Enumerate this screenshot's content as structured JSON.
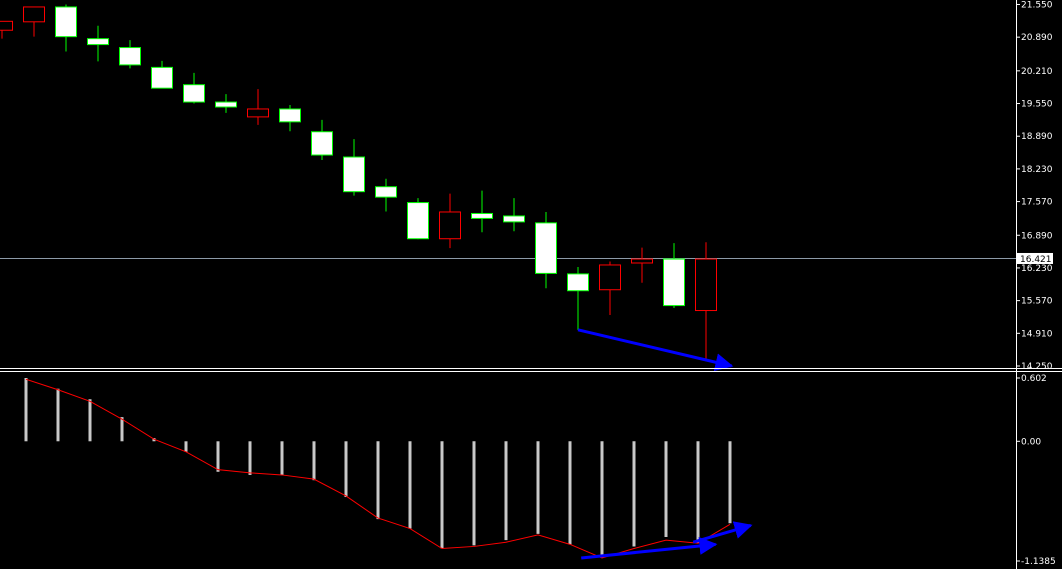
{
  "chart_data": [
    {
      "type": "candlestick",
      "panel": "price",
      "ylim": [
        14.25,
        21.6
      ],
      "y_ticks": [
        "21.550",
        "20.890",
        "20.210",
        "19.550",
        "18.890",
        "18.230",
        "17.570",
        "16.890",
        "16.230",
        "15.570",
        "14.910",
        "14.250"
      ],
      "current_price": "16.421",
      "grid": false,
      "candles": [
        {
          "o": 21.03,
          "h": 21.2,
          "l": 20.86,
          "c": 21.21,
          "dir": "down"
        },
        {
          "o": 21.2,
          "h": 21.48,
          "l": 20.9,
          "c": 21.5,
          "dir": "down"
        },
        {
          "o": 21.5,
          "h": 21.55,
          "l": 20.6,
          "c": 20.9,
          "dir": "up"
        },
        {
          "o": 20.86,
          "h": 21.12,
          "l": 20.4,
          "c": 20.74,
          "dir": "up"
        },
        {
          "o": 20.68,
          "h": 20.83,
          "l": 20.26,
          "c": 20.33,
          "dir": "up"
        },
        {
          "o": 20.28,
          "h": 20.41,
          "l": 19.86,
          "c": 19.86,
          "dir": "up"
        },
        {
          "o": 19.93,
          "h": 20.17,
          "l": 19.55,
          "c": 19.58,
          "dir": "up"
        },
        {
          "o": 19.58,
          "h": 19.74,
          "l": 19.36,
          "c": 19.48,
          "dir": "up"
        },
        {
          "o": 19.28,
          "h": 19.84,
          "l": 19.12,
          "c": 19.44,
          "dir": "down"
        },
        {
          "o": 19.44,
          "h": 19.52,
          "l": 18.99,
          "c": 19.18,
          "dir": "up"
        },
        {
          "o": 18.98,
          "h": 19.22,
          "l": 18.41,
          "c": 18.51,
          "dir": "up"
        },
        {
          "o": 18.47,
          "h": 18.83,
          "l": 17.69,
          "c": 17.77,
          "dir": "up"
        },
        {
          "o": 17.87,
          "h": 18.03,
          "l": 17.37,
          "c": 17.66,
          "dir": "up"
        },
        {
          "o": 17.55,
          "h": 17.64,
          "l": 16.81,
          "c": 16.82,
          "dir": "up"
        },
        {
          "o": 16.82,
          "h": 17.73,
          "l": 16.63,
          "c": 17.36,
          "dir": "down"
        },
        {
          "o": 17.33,
          "h": 17.79,
          "l": 16.95,
          "c": 17.23,
          "dir": "up"
        },
        {
          "o": 17.28,
          "h": 17.64,
          "l": 16.97,
          "c": 17.16,
          "dir": "up"
        },
        {
          "o": 17.14,
          "h": 17.36,
          "l": 15.82,
          "c": 16.12,
          "dir": "up"
        },
        {
          "o": 16.11,
          "h": 16.25,
          "l": 14.98,
          "c": 15.77,
          "dir": "up"
        },
        {
          "o": 15.79,
          "h": 16.36,
          "l": 15.28,
          "c": 16.29,
          "dir": "down"
        },
        {
          "o": 16.33,
          "h": 16.64,
          "l": 15.93,
          "c": 16.41,
          "dir": "down"
        },
        {
          "o": 16.41,
          "h": 16.73,
          "l": 15.42,
          "c": 15.47,
          "dir": "up"
        },
        {
          "o": 15.37,
          "h": 16.75,
          "l": 14.34,
          "c": 16.41,
          "dir": "down"
        }
      ],
      "annotation": {
        "type": "arrow",
        "color": "#0000ff",
        "from": {
          "bar": 18,
          "y": 14.98
        },
        "to": {
          "bar": 22.8,
          "y": 14.25
        }
      }
    },
    {
      "type": "histogram",
      "panel": "oscillator",
      "ylim": [
        -1.1385,
        0.602
      ],
      "y_ticks": [
        "0.602",
        "0.00",
        "-1.1385"
      ],
      "values": [
        0.602,
        0.5,
        0.4,
        0.23,
        0.03,
        -0.1,
        -0.29,
        -0.32,
        -0.32,
        -0.37,
        -0.53,
        -0.74,
        -0.83,
        -1.02,
        -0.99,
        -0.94,
        -0.88,
        -0.98,
        -1.11,
        -1.0,
        -0.91,
        -0.97,
        -0.78
      ],
      "signal_line": [
        0.59,
        0.49,
        0.38,
        0.21,
        0.02,
        -0.1,
        -0.27,
        -0.3,
        -0.32,
        -0.36,
        -0.52,
        -0.73,
        -0.83,
        -1.02,
        -1.0,
        -0.96,
        -0.89,
        -0.98,
        -1.11,
        -1.02,
        -0.94,
        -0.97,
        -0.79
      ],
      "bar_color": "#c8c8c8",
      "line_color": "#ff0000",
      "annotations": [
        {
          "type": "arrow",
          "color": "#0000ff",
          "from": {
            "bar": 18.1,
            "y": -1.11
          },
          "to": {
            "bar": 22.3,
            "y": -0.98
          }
        },
        {
          "type": "arrow",
          "color": "#0000ff",
          "from": {
            "bar": 21.6,
            "y": -0.96
          },
          "to": {
            "bar": 23.4,
            "y": -0.8
          }
        }
      ]
    }
  ]
}
